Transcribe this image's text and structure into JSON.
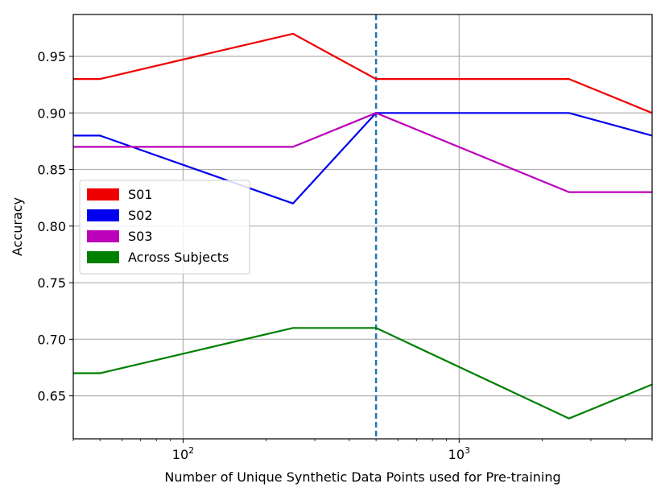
{
  "chart_data": {
    "type": "line",
    "xscale": "log",
    "xlabel": "Number of Unique Synthetic Data Points used for Pre-training",
    "ylabel": "Accuracy",
    "xlim": [
      40,
      5000
    ],
    "ylim": [
      0.612,
      0.987
    ],
    "x": [
      40,
      50,
      250,
      500,
      2500,
      5000
    ],
    "xticks": [
      {
        "value": 100,
        "base": "10",
        "exp": "2"
      },
      {
        "value": 1000,
        "base": "10",
        "exp": "3"
      }
    ],
    "yticks": [
      {
        "value": 0.65,
        "label": "0.65"
      },
      {
        "value": 0.7,
        "label": "0.70"
      },
      {
        "value": 0.75,
        "label": "0.75"
      },
      {
        "value": 0.8,
        "label": "0.80"
      },
      {
        "value": 0.85,
        "label": "0.85"
      },
      {
        "value": 0.9,
        "label": "0.90"
      },
      {
        "value": 0.95,
        "label": "0.95"
      }
    ],
    "grid": true,
    "legend_position": "center-left",
    "vline": {
      "x": 500,
      "style": "dashed",
      "color": "#1f77b4"
    },
    "series": [
      {
        "name": "S01",
        "color": "#ee0000",
        "values": [
          0.93,
          0.93,
          0.97,
          0.93,
          0.93,
          0.9
        ]
      },
      {
        "name": "S02",
        "color": "#0000ee",
        "values": [
          0.88,
          0.88,
          0.82,
          0.9,
          0.9,
          0.88
        ]
      },
      {
        "name": "S03",
        "color": "#bb00bb",
        "values": [
          0.87,
          0.87,
          0.87,
          0.9,
          0.83,
          0.83
        ]
      },
      {
        "name": "Across Subjects",
        "color": "#008000",
        "values": [
          0.67,
          0.67,
          0.71,
          0.71,
          0.63,
          0.66
        ]
      }
    ]
  }
}
